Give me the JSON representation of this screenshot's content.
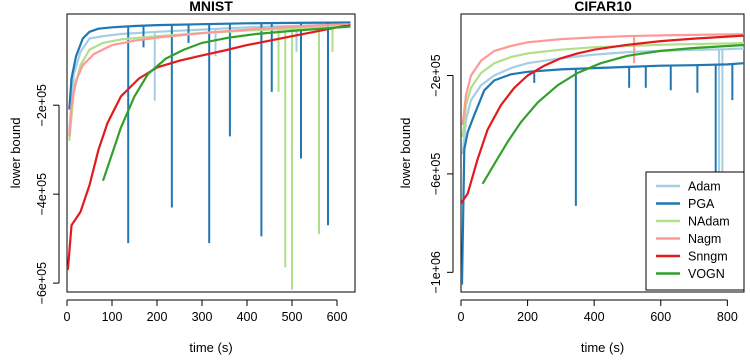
{
  "figure": {
    "legend": {
      "placement": "bottom-right of CIFAR10 panel",
      "entries": [
        {
          "name": "Adam",
          "color": "#a6cee3"
        },
        {
          "name": "PGA",
          "color": "#1f78b4"
        },
        {
          "name": "NAdam",
          "color": "#b2df8a"
        },
        {
          "name": "Nagm",
          "color": "#fb9a99"
        },
        {
          "name": "Snngm",
          "color": "#e31a1c"
        },
        {
          "name": "VOGN",
          "color": "#33a02c"
        }
      ]
    }
  },
  "chart_data": [
    {
      "type": "line",
      "title": "MNIST",
      "xlabel": "time (s)",
      "ylabel": "lower bound",
      "xlim": [
        0,
        640
      ],
      "ylim": [
        -620000,
        5000
      ],
      "xticks": [
        0,
        100,
        200,
        300,
        400,
        500,
        600
      ],
      "xtick_labels": [
        "0",
        "100",
        "200",
        "300",
        "400",
        "500",
        "600"
      ],
      "yticks": [
        -600000,
        -400000,
        -200000
      ],
      "ytick_labels": [
        "−6e+05",
        "−4e+05",
        "−2e+05"
      ],
      "grid": false,
      "series": [
        {
          "name": "Adam",
          "color": "#a6cee3",
          "x": [
            5,
            15,
            30,
            50,
            80,
            120,
            200,
            300,
            400,
            500,
            620
          ],
          "y": [
            -260000,
            -130000,
            -80000,
            -50000,
            -45000,
            -40000,
            -35000,
            -30000,
            -25000,
            -22000,
            -18000
          ],
          "spikes": [
            [
              195,
              -190000
            ],
            [
              330,
              -90000
            ],
            [
              510,
              -80000
            ]
          ]
        },
        {
          "name": "PGA",
          "color": "#1f78b4",
          "x": [
            5,
            10,
            20,
            35,
            50,
            70,
            100,
            150,
            200,
            300,
            400,
            500,
            630
          ],
          "y": [
            -210000,
            -140000,
            -90000,
            -50000,
            -35000,
            -28000,
            -25000,
            -22000,
            -20000,
            -18000,
            -16000,
            -15000,
            -14000
          ],
          "spikes": [
            [
              136,
              -510000
            ],
            [
              233,
              -430000
            ],
            [
              316,
              -510000
            ],
            [
              362,
              -270000
            ],
            [
              432,
              -495000
            ],
            [
              580,
              -470000
            ],
            [
              520,
              -320000
            ],
            [
              455,
              -170000
            ],
            [
              170,
              -70000
            ],
            [
              270,
              -60000
            ]
          ]
        },
        {
          "name": "NAdam",
          "color": "#b2df8a",
          "x": [
            5,
            15,
            30,
            50,
            80,
            120,
            200,
            300,
            400,
            500,
            620
          ],
          "y": [
            -280000,
            -170000,
            -110000,
            -75000,
            -60000,
            -52000,
            -45000,
            -38000,
            -32000,
            -28000,
            -24000
          ],
          "spikes": [
            [
              485,
              -565000
            ],
            [
              500,
              -615000
            ],
            [
              560,
              -490000
            ],
            [
              470,
              -170000
            ],
            [
              590,
              -80000
            ]
          ]
        },
        {
          "name": "Nagm",
          "color": "#fb9a99",
          "x": [
            5,
            10,
            20,
            35,
            60,
            100,
            150,
            200,
            300,
            400,
            500,
            620
          ],
          "y": [
            -270000,
            -200000,
            -145000,
            -110000,
            -85000,
            -65000,
            -55000,
            -48000,
            -38000,
            -30000,
            -24000,
            -18000
          ],
          "spikes": []
        },
        {
          "name": "Snngm",
          "color": "#e31a1c",
          "x": [
            2,
            10,
            30,
            50,
            70,
            90,
            120,
            160,
            200,
            250,
            300,
            350,
            400,
            450,
            500,
            550,
            600,
            630
          ],
          "y": [
            -570000,
            -470000,
            -440000,
            -380000,
            -300000,
            -240000,
            -180000,
            -140000,
            -115000,
            -100000,
            -88000,
            -77000,
            -65000,
            -55000,
            -45000,
            -35000,
            -25000,
            -20000
          ],
          "spikes": []
        },
        {
          "name": "VOGN",
          "color": "#33a02c",
          "x": [
            80,
            100,
            120,
            150,
            180,
            220,
            260,
            300,
            360,
            420,
            500,
            580,
            630
          ],
          "y": [
            -370000,
            -310000,
            -250000,
            -180000,
            -130000,
            -95000,
            -75000,
            -60000,
            -48000,
            -40000,
            -33000,
            -27000,
            -23000
          ],
          "spikes": []
        }
      ]
    },
    {
      "type": "line",
      "title": "CIFAR10",
      "xlabel": "time (s)",
      "ylabel": "lower bound",
      "xlim": [
        0,
        850
      ],
      "ylim": [
        -1080000,
        50000
      ],
      "xticks": [
        0,
        200,
        400,
        600,
        800
      ],
      "xtick_labels": [
        "0",
        "200",
        "400",
        "600",
        "800"
      ],
      "yticks": [
        -1000000,
        -600000,
        -200000
      ],
      "ytick_labels": [
        "−1e+06",
        "−6e+05",
        "−2e+05"
      ],
      "grid": false,
      "series": [
        {
          "name": "Adam",
          "color": "#a6cee3",
          "x": [
            5,
            15,
            30,
            60,
            100,
            150,
            200,
            300,
            400,
            500,
            600,
            700,
            800,
            850
          ],
          "y": [
            -520000,
            -380000,
            -300000,
            -240000,
            -200000,
            -170000,
            -150000,
            -130000,
            -115000,
            -105000,
            -100000,
            -96000,
            -93000,
            -90000
          ],
          "spikes": [
            [
              775,
              -1000000
            ],
            [
              785,
              -600000
            ]
          ]
        },
        {
          "name": "PGA",
          "color": "#1f78b4",
          "x": [
            3,
            10,
            20,
            40,
            70,
            100,
            150,
            200,
            300,
            400,
            500,
            600,
            700,
            800,
            850
          ],
          "y": [
            -1050000,
            -500000,
            -430000,
            -360000,
            -260000,
            -220000,
            -195000,
            -185000,
            -175000,
            -170000,
            -165000,
            -160000,
            -158000,
            -155000,
            -150000
          ],
          "spikes": [
            [
              345,
              -730000
            ],
            [
              765,
              -650000
            ],
            [
              710,
              -270000
            ],
            [
              630,
              -260000
            ],
            [
              555,
              -250000
            ],
            [
              220,
              -230000
            ],
            [
              505,
              -250000
            ],
            [
              815,
              -300000
            ]
          ]
        },
        {
          "name": "NAdam",
          "color": "#b2df8a",
          "x": [
            5,
            15,
            30,
            60,
            100,
            150,
            200,
            300,
            400,
            500,
            600,
            700,
            800,
            850
          ],
          "y": [
            -450000,
            -320000,
            -250000,
            -190000,
            -150000,
            -125000,
            -110000,
            -95000,
            -85000,
            -80000,
            -75000,
            -72000,
            -70000,
            -68000
          ],
          "spikes": []
        },
        {
          "name": "Nagm",
          "color": "#fb9a99",
          "x": [
            5,
            15,
            30,
            60,
            100,
            150,
            200,
            300,
            400,
            500,
            600,
            700,
            800,
            850
          ],
          "y": [
            -400000,
            -280000,
            -200000,
            -140000,
            -100000,
            -80000,
            -65000,
            -52000,
            -45000,
            -40000,
            -37000,
            -35000,
            -33000,
            -32000
          ],
          "spikes": [
            [
              520,
              -150000
            ]
          ]
        },
        {
          "name": "Snngm",
          "color": "#e31a1c",
          "x": [
            0,
            20,
            50,
            80,
            120,
            160,
            200,
            250,
            300,
            350,
            400,
            450,
            500,
            600,
            700,
            800,
            850
          ],
          "y": [
            -720000,
            -680000,
            -540000,
            -420000,
            -320000,
            -250000,
            -200000,
            -160000,
            -130000,
            -110000,
            -95000,
            -85000,
            -75000,
            -60000,
            -50000,
            -42000,
            -38000
          ],
          "spikes": []
        },
        {
          "name": "VOGN",
          "color": "#33a02c",
          "x": [
            65,
            100,
            140,
            180,
            230,
            290,
            350,
            420,
            500,
            600,
            700,
            800,
            850
          ],
          "y": [
            -640000,
            -560000,
            -470000,
            -390000,
            -310000,
            -240000,
            -190000,
            -150000,
            -120000,
            -100000,
            -88000,
            -80000,
            -76000
          ],
          "spikes": []
        }
      ]
    }
  ]
}
